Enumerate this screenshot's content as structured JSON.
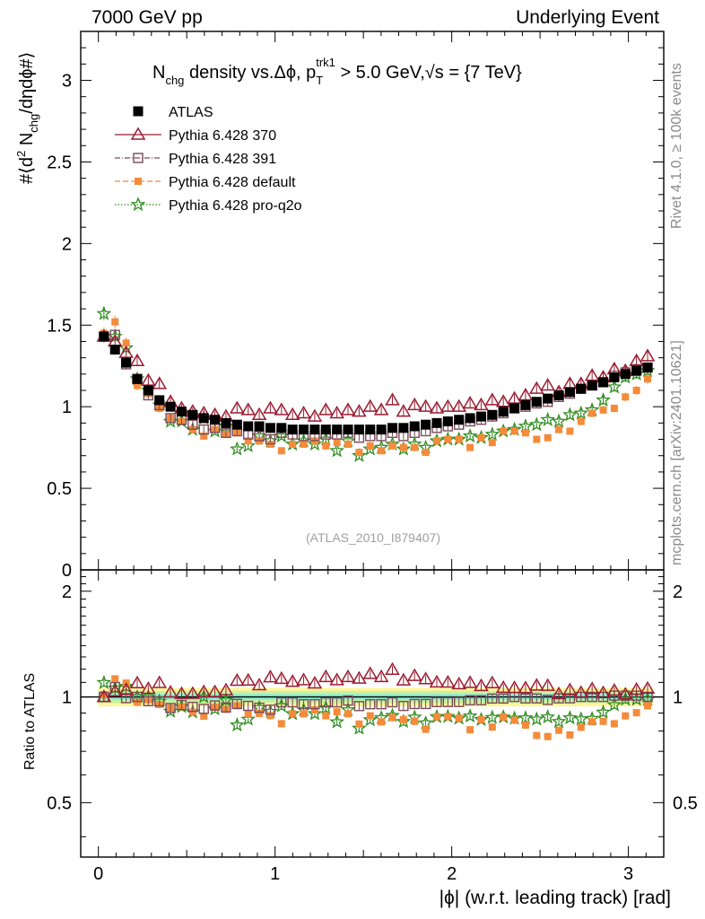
{
  "header": {
    "left": "7000 GeV pp",
    "right": "Underlying Event"
  },
  "side_text": {
    "rivet": "Rivet 4.1.0, ≥ 100k events",
    "mcplots": "mcplots.cern.ch [arXiv:2401.10621]"
  },
  "analysis_label": "(ATLAS_2010_I879407)",
  "chart_data": {
    "type": "scatter",
    "title_parts": {
      "n": "N",
      "n_sub": "chg",
      "mid": " density vs.Δϕ, p",
      "pt_sub": "T",
      "pt_sup": "trk1",
      "cut": " > 5.0 GeV,",
      "sqrt": "√s",
      "energy": " = {7 TeV}"
    },
    "ylabel_parts": {
      "a": "#⟨d",
      "sup": "2",
      "b": " N",
      "sub": "chg",
      "c": "/dηdϕ#⟩"
    },
    "ratio_ylabel": "Ratio to ATLAS",
    "xlabel": "|ϕ| (w.r.t. leading track) [rad]",
    "xlim": [
      -0.1,
      3.2
    ],
    "ylim_main": [
      0,
      3.3
    ],
    "ylim_ratio": [
      0.35,
      2.3
    ],
    "x_ticks": [
      "0",
      "1",
      "2",
      "3"
    ],
    "main_y_ticks": [
      "0",
      "0.5",
      "1",
      "1.5",
      "2",
      "2.5",
      "3"
    ],
    "ratio_y_ticks": [
      "0.5",
      "1",
      "2"
    ],
    "n_bins": 50,
    "x_start": 0.0314,
    "x_step": 0.0628,
    "legend": [
      {
        "label": "ATLAS",
        "marker": "filled-square",
        "color": "#000000"
      },
      {
        "label": "Pythia 6.428 370",
        "marker": "open-triangle",
        "color": "#9b1b30"
      },
      {
        "label": "Pythia 6.428 391",
        "marker": "open-square",
        "color": "#7a4a5a"
      },
      {
        "label": "Pythia 6.428 default",
        "marker": "filled-square",
        "color": "#f58b3a"
      },
      {
        "label": "Pythia 6.428 pro-q2o",
        "marker": "star",
        "color": "#2e8b1e"
      }
    ],
    "series": [
      {
        "name": "ATLAS",
        "values": [
          1.43,
          1.35,
          1.27,
          1.17,
          1.1,
          1.04,
          1.0,
          0.97,
          0.95,
          0.93,
          0.92,
          0.9,
          0.89,
          0.88,
          0.88,
          0.87,
          0.87,
          0.86,
          0.86,
          0.86,
          0.86,
          0.86,
          0.86,
          0.86,
          0.86,
          0.86,
          0.87,
          0.87,
          0.88,
          0.89,
          0.9,
          0.91,
          0.92,
          0.93,
          0.94,
          0.95,
          0.97,
          0.99,
          1.01,
          1.03,
          1.05,
          1.07,
          1.09,
          1.11,
          1.13,
          1.15,
          1.18,
          1.2,
          1.22,
          1.24
        ]
      },
      {
        "name": "Pythia 6.428 370",
        "values": [
          1.43,
          1.4,
          1.33,
          1.28,
          1.16,
          1.14,
          1.03,
          0.99,
          0.97,
          0.96,
          0.95,
          0.94,
          0.99,
          0.98,
          0.95,
          0.99,
          0.98,
          0.95,
          0.96,
          0.94,
          0.98,
          0.96,
          0.98,
          0.97,
          1.0,
          0.98,
          1.04,
          0.97,
          1.01,
          1.0,
          0.99,
          1.0,
          1.0,
          1.02,
          1.01,
          1.04,
          1.03,
          1.05,
          1.07,
          1.11,
          1.13,
          1.09,
          1.14,
          1.14,
          1.19,
          1.18,
          1.23,
          1.22,
          1.28,
          1.31
        ]
      },
      {
        "name": "Pythia 6.428 391",
        "values": [
          1.43,
          1.44,
          1.26,
          1.17,
          1.07,
          1.01,
          0.93,
          0.92,
          0.89,
          0.86,
          0.87,
          0.84,
          0.85,
          0.83,
          0.82,
          0.8,
          0.84,
          0.83,
          0.82,
          0.82,
          0.83,
          0.83,
          0.84,
          0.81,
          0.82,
          0.82,
          0.84,
          0.82,
          0.84,
          0.85,
          0.87,
          0.88,
          0.89,
          0.91,
          0.92,
          0.94,
          0.96,
          0.99,
          1.0,
          1.02,
          1.03,
          1.06,
          1.08,
          1.11,
          1.13,
          1.15,
          1.19,
          1.21,
          1.23,
          1.24
        ]
      },
      {
        "name": "Pythia 6.428 default",
        "values": [
          1.45,
          1.52,
          1.39,
          1.13,
          1.08,
          0.99,
          0.93,
          0.91,
          0.86,
          0.82,
          0.86,
          0.83,
          0.84,
          0.79,
          0.79,
          0.77,
          0.73,
          0.77,
          0.77,
          0.79,
          0.76,
          0.78,
          0.77,
          0.72,
          0.76,
          0.73,
          0.76,
          0.75,
          0.75,
          0.72,
          0.79,
          0.8,
          0.8,
          0.75,
          0.81,
          0.78,
          0.85,
          0.85,
          0.84,
          0.8,
          0.81,
          0.86,
          0.85,
          0.91,
          0.96,
          0.98,
          0.99,
          1.06,
          1.1,
          1.17
        ]
      },
      {
        "name": "Pythia 6.428 pro-q2o",
        "values": [
          1.57,
          1.43,
          1.36,
          1.17,
          1.1,
          1.01,
          0.91,
          0.91,
          0.86,
          0.93,
          0.85,
          0.88,
          0.74,
          0.76,
          0.82,
          0.79,
          0.82,
          0.77,
          0.79,
          0.77,
          0.8,
          0.73,
          0.79,
          0.7,
          0.74,
          0.75,
          0.77,
          0.74,
          0.77,
          0.75,
          0.79,
          0.8,
          0.8,
          0.82,
          0.81,
          0.83,
          0.85,
          0.86,
          0.88,
          0.89,
          0.92,
          0.91,
          0.95,
          0.96,
          0.98,
          1.04,
          1.12,
          1.18,
          1.2,
          1.22
        ]
      }
    ]
  }
}
